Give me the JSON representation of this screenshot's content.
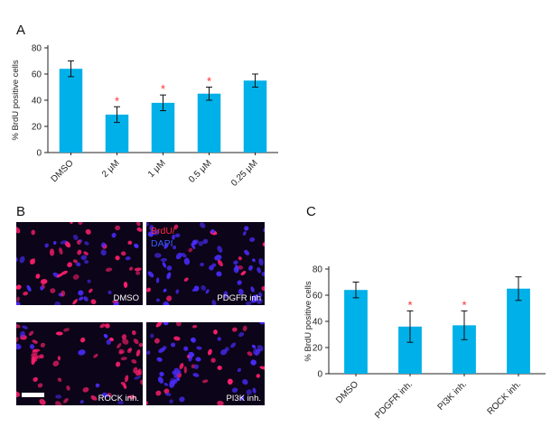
{
  "panels": {
    "a": "A",
    "b": "B",
    "c": "C"
  },
  "colors": {
    "bar": "#00b0e8",
    "star": "#ff3030",
    "nuclei_red": "#ff1f6e",
    "nuclei_blue": "#4a2cff",
    "micro_bg": "#0c0418"
  },
  "micrographs": {
    "legend_brdu": "BrdU/",
    "legend_dapi": "DAPI",
    "labels": [
      "DMSO",
      "PDGFR inh",
      "ROCK inh.",
      "PI3K inh."
    ]
  },
  "chart_data": [
    {
      "type": "bar",
      "panel": "A",
      "title": "",
      "xlabel": "",
      "ylabel": "% BrdU positive cells",
      "ylim": [
        0,
        80
      ],
      "yticks": [
        "0",
        "20",
        "40",
        "60",
        "80"
      ],
      "categories": [
        "DMSO",
        "2 μM",
        "1 μM",
        "0.5 μM",
        "0.25 μM"
      ],
      "values": [
        64,
        29,
        38,
        45,
        55
      ],
      "errors": [
        6,
        6,
        6,
        5,
        5
      ],
      "significant": [
        "",
        "*",
        "*",
        "*",
        ""
      ]
    },
    {
      "type": "bar",
      "panel": "C",
      "title": "",
      "xlabel": "",
      "ylabel": "% BrdU positive cells",
      "ylim": [
        0,
        80
      ],
      "yticks": [
        "0",
        "20",
        "40",
        "60",
        "80"
      ],
      "categories": [
        "DMSO",
        "PDGFR inh.",
        "PI3K inh.",
        "ROCK inh."
      ],
      "values": [
        64,
        36,
        37,
        65
      ],
      "errors": [
        6,
        12,
        11,
        9
      ],
      "significant": [
        "",
        "*",
        "*",
        ""
      ]
    }
  ]
}
